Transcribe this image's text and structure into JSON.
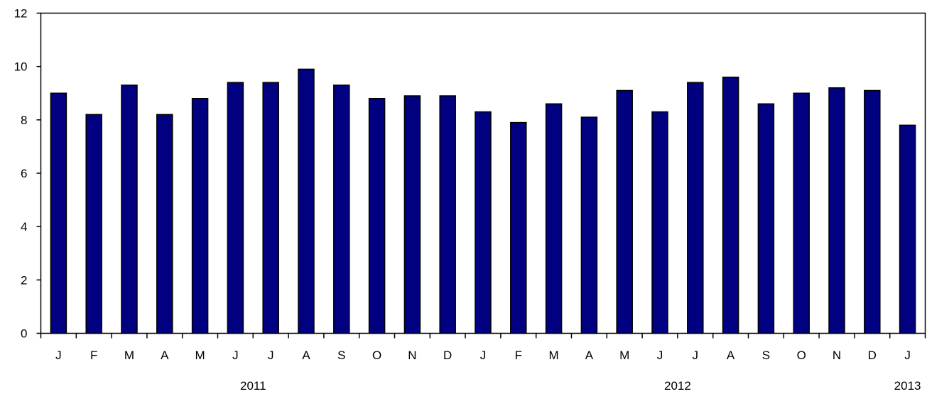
{
  "chart_data": {
    "type": "bar",
    "categories": [
      "J",
      "F",
      "M",
      "A",
      "M",
      "J",
      "J",
      "A",
      "S",
      "O",
      "N",
      "D",
      "J",
      "F",
      "M",
      "A",
      "M",
      "J",
      "J",
      "A",
      "S",
      "O",
      "N",
      "D",
      "J"
    ],
    "year_labels": [
      {
        "label": "2011",
        "category_index": 5.5
      },
      {
        "label": "2012",
        "category_index": 17.5
      },
      {
        "label": "2013",
        "category_index": 24
      }
    ],
    "values": [
      9.0,
      8.2,
      9.3,
      8.2,
      8.8,
      9.4,
      9.4,
      9.9,
      9.3,
      8.8,
      8.9,
      8.9,
      8.3,
      7.9,
      8.6,
      8.1,
      9.1,
      8.3,
      9.4,
      9.6,
      8.6,
      9.0,
      9.2,
      9.1,
      7.8
    ],
    "title": "",
    "xlabel": "",
    "ylabel": "",
    "ylim": [
      0,
      12
    ],
    "yticks": [
      0,
      2,
      4,
      6,
      8,
      10,
      12
    ],
    "grid": false,
    "legend": "none",
    "bar_color": "#000080",
    "bar_outline": "#000000"
  }
}
